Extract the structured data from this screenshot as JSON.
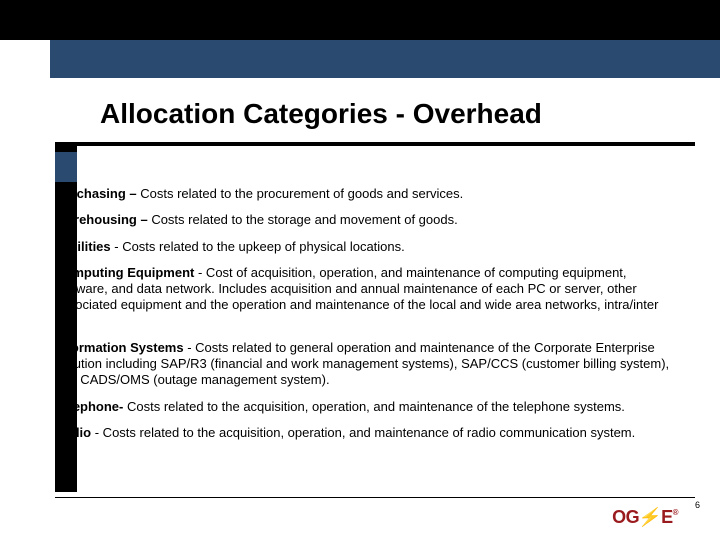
{
  "colors": {
    "black": "#000000",
    "navy": "#2b4a6f",
    "logo_red": "#9a1b1e",
    "background": "#ffffff"
  },
  "title": "Allocation Categories - Overhead",
  "items": [
    {
      "term": "Purchasing –",
      "desc": " Costs related to the procurement of goods and services."
    },
    {
      "term": "Warehousing –",
      "desc": " Costs related to the storage and movement of goods."
    },
    {
      "term": "Facilities",
      "desc": " - Costs related to the upkeep of physical locations."
    },
    {
      "term": "Computing Equipment",
      "desc": " - Cost of acquisition, operation, and maintenance of computing equipment, software, and data network. Includes acquisition and annual maintenance of each PC or server, other associated equipment and the operation and maintenance of the local and wide area networks, intra/inter net."
    },
    {
      "term": "Information Systems",
      "desc": " - Costs related to general operation and maintenance of the Corporate Enterprise Solution including  SAP/R3 (financial  and work management systems), SAP/CCS (customer billing system), and CADS/OMS (outage management system)."
    },
    {
      "term": "Telephone-",
      "desc": " Costs related to the acquisition, operation, and maintenance of the telephone systems."
    },
    {
      "term": "Radio",
      "desc": " - Costs related to the acquisition, operation, and maintenance of radio communication system."
    }
  ],
  "logo_text": "OG+E",
  "page_number": "6"
}
